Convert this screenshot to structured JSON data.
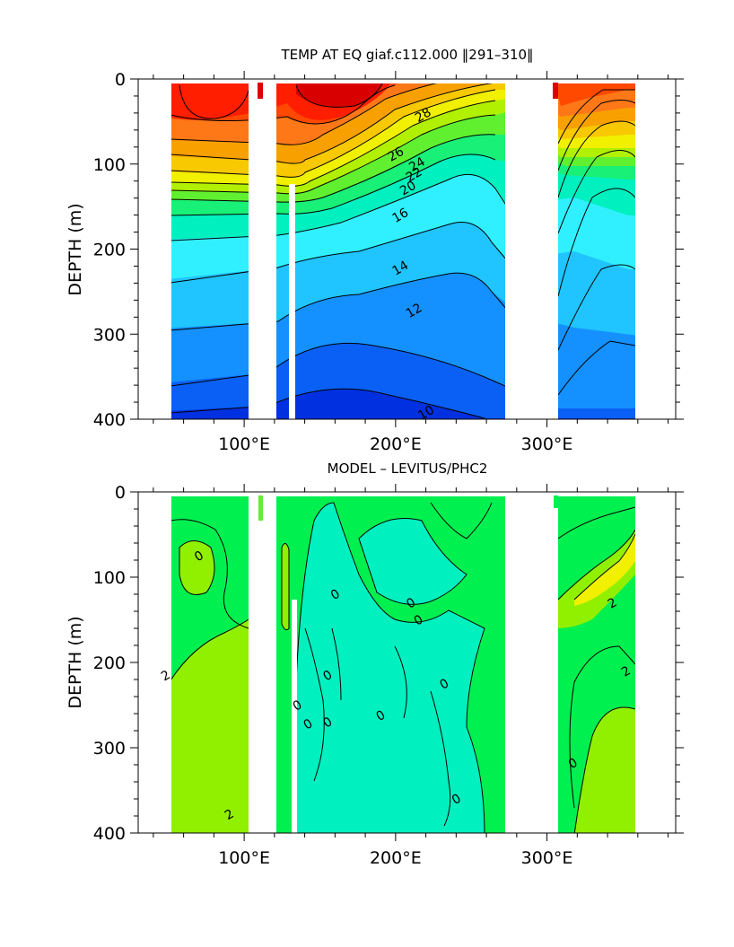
{
  "colors": {
    "temp": [
      "#0030e0",
      "#0a60f4",
      "#1590ff",
      "#20c4ff",
      "#30f0ff",
      "#00f0c0",
      "#18f078",
      "#60f030",
      "#b0f000",
      "#f0f000",
      "#f8c800",
      "#f8a000",
      "#ff7818",
      "#ff4800",
      "#ff1e00",
      "#d80000"
    ],
    "diff": {
      "cold": "#00f0c0",
      "zero": "#00f050",
      "warm": "#90f000",
      "hot": "#f0f000"
    },
    "contour": "#000000",
    "land": "#ffffff"
  },
  "chart_data": [
    {
      "type": "heatmap",
      "title": "TEMP AT EQ giaf.c112.000 ‖291–310‖",
      "xlabel": "",
      "ylabel": "DEPTH (m)",
      "xlim": [
        30,
        385
      ],
      "ylim": [
        400,
        0
      ],
      "xticks": [
        {
          "value": 100,
          "label": "100°E"
        },
        {
          "value": 200,
          "label": "200°E"
        },
        {
          "value": 300,
          "label": "300°E"
        }
      ],
      "yticks": [
        0,
        100,
        200,
        300,
        400
      ],
      "variable": "temperature",
      "units": "degC",
      "contour_labels": [
        {
          "lon": 218,
          "depth": 42,
          "text": "28"
        },
        {
          "lon": 200,
          "depth": 88,
          "text": "26"
        },
        {
          "lon": 214,
          "depth": 100,
          "text": "24"
        },
        {
          "lon": 212,
          "depth": 112,
          "text": "22"
        },
        {
          "lon": 208,
          "depth": 128,
          "text": "20"
        },
        {
          "lon": 203,
          "depth": 160,
          "text": "16"
        },
        {
          "lon": 203,
          "depth": 222,
          "text": "14"
        },
        {
          "lon": 212,
          "depth": 272,
          "text": "12"
        },
        {
          "lon": 220,
          "depth": 392,
          "text": "10"
        }
      ]
    },
    {
      "type": "heatmap",
      "title": "MODEL – LEVITUS/PHC2",
      "xlabel": "",
      "ylabel": "DEPTH (m)",
      "xlim": [
        30,
        385
      ],
      "ylim": [
        400,
        0
      ],
      "xticks": [
        {
          "value": 100,
          "label": "100°E"
        },
        {
          "value": 200,
          "label": "200°E"
        },
        {
          "value": 300,
          "label": "300°E"
        }
      ],
      "yticks": [
        0,
        100,
        200,
        300,
        400
      ],
      "variable": "temperature difference",
      "units": "degC",
      "contour_labels": [
        {
          "lon": 70,
          "depth": 75,
          "text": "0"
        },
        {
          "lon": 160,
          "depth": 120,
          "text": "0"
        },
        {
          "lon": 210,
          "depth": 130,
          "text": "0"
        },
        {
          "lon": 215,
          "depth": 150,
          "text": "0"
        },
        {
          "lon": 232,
          "depth": 225,
          "text": "0"
        },
        {
          "lon": 155,
          "depth": 215,
          "text": "0"
        },
        {
          "lon": 135,
          "depth": 250,
          "text": "0"
        },
        {
          "lon": 142,
          "depth": 272,
          "text": "0"
        },
        {
          "lon": 155,
          "depth": 270,
          "text": "0"
        },
        {
          "lon": 190,
          "depth": 262,
          "text": "0"
        },
        {
          "lon": 240,
          "depth": 360,
          "text": "0"
        },
        {
          "lon": 317,
          "depth": 318,
          "text": "0"
        },
        {
          "lon": 343,
          "depth": 130,
          "text": "2"
        },
        {
          "lon": 352,
          "depth": 210,
          "text": "2"
        },
        {
          "lon": 48,
          "depth": 215,
          "text": "2"
        },
        {
          "lon": 90,
          "depth": 378,
          "text": "2"
        }
      ]
    }
  ]
}
